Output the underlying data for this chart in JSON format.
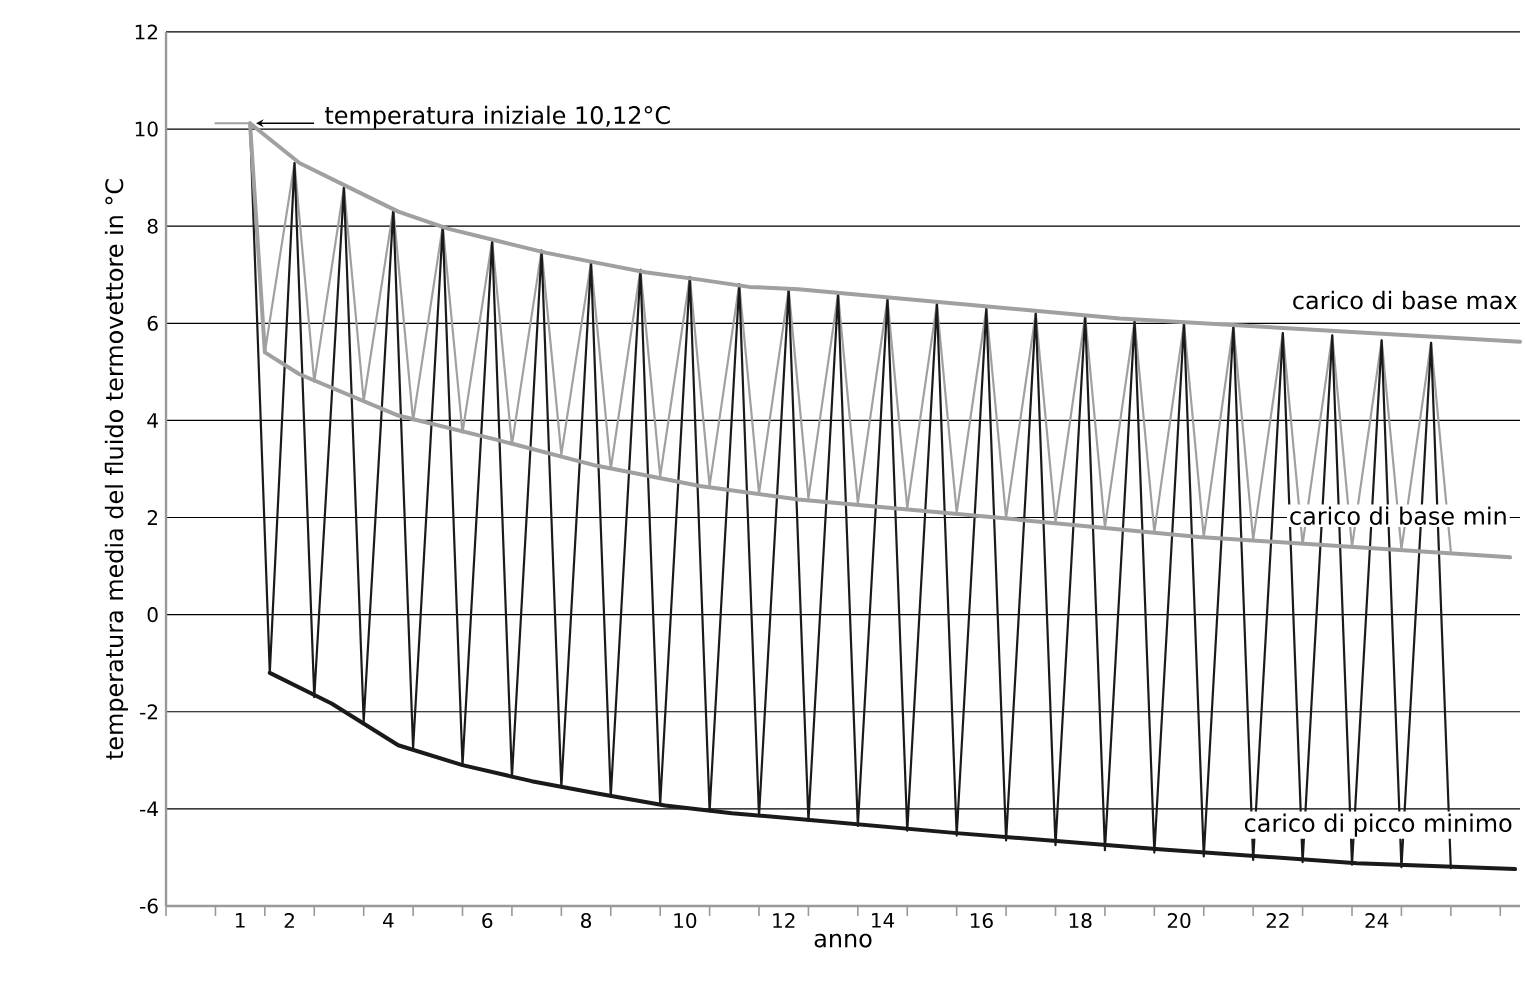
{
  "chart_data": {
    "type": "line",
    "xlabel": "anno",
    "ylabel": "temperatura media del fluido termovettore in °C",
    "xlim": [
      -0.5,
      26.9
    ],
    "ylim": [
      -6,
      12
    ],
    "yticks": [
      -6,
      -4,
      -2,
      0,
      2,
      4,
      6,
      8,
      10,
      12
    ],
    "xticks": [
      {
        "value": 1,
        "label": "1"
      },
      {
        "value": 2,
        "label": "2"
      },
      {
        "value": 4,
        "label": "4"
      },
      {
        "value": 6,
        "label": "6"
      },
      {
        "value": 8,
        "label": "8"
      },
      {
        "value": 10,
        "label": "10"
      },
      {
        "value": 12,
        "label": "12"
      },
      {
        "value": 14,
        "label": "14"
      },
      {
        "value": 16,
        "label": "16"
      },
      {
        "value": 18,
        "label": "18"
      },
      {
        "value": 20,
        "label": "20"
      },
      {
        "value": 22,
        "label": "22"
      },
      {
        "value": 24,
        "label": "24"
      },
      {
        "value": -0.5,
        "label": null
      },
      {
        "value": 0.5,
        "label": null
      },
      {
        "value": 1.5,
        "label": null
      },
      {
        "value": 2.5,
        "label": null
      },
      {
        "value": 3.5,
        "label": null
      },
      {
        "value": 4.5,
        "label": null
      },
      {
        "value": 5.5,
        "label": null
      },
      {
        "value": 6.5,
        "label": null
      },
      {
        "value": 7.5,
        "label": null
      },
      {
        "value": 8.5,
        "label": null
      },
      {
        "value": 9.5,
        "label": null
      },
      {
        "value": 10.5,
        "label": null
      },
      {
        "value": 11.5,
        "label": null
      },
      {
        "value": 12.5,
        "label": null
      },
      {
        "value": 13.5,
        "label": null
      },
      {
        "value": 14.5,
        "label": null
      },
      {
        "value": 15.5,
        "label": null
      },
      {
        "value": 16.5,
        "label": null
      },
      {
        "value": 17.5,
        "label": null
      },
      {
        "value": 18.5,
        "label": null
      },
      {
        "value": 19.5,
        "label": null
      },
      {
        "value": 20.5,
        "label": null
      },
      {
        "value": 21.5,
        "label": null
      },
      {
        "value": 22.5,
        "label": null
      },
      {
        "value": 23.5,
        "label": null
      },
      {
        "value": 24.5,
        "label": null
      },
      {
        "value": 25.5,
        "label": null
      },
      {
        "value": 26.5,
        "label": null
      }
    ],
    "grid": "y",
    "marker": "none",
    "line_style": "solid",
    "annotations": [
      {
        "text": "temperatura iniziale 10,12°C",
        "x": 1.2,
        "y": 10.12
      }
    ],
    "series": [
      {
        "color": "#a0a0a0",
        "x": [
          0.5,
          1.2,
          1.5,
          2.1,
          2.5,
          3.1,
          3.5,
          4.1,
          4.5,
          5.1,
          5.5,
          6.1,
          6.5,
          7.1,
          7.5,
          8.1,
          8.5,
          9.1,
          9.5,
          10.1,
          10.5,
          11.1,
          11.5,
          12.1,
          12.5,
          13.1,
          13.5,
          14.1,
          14.5,
          15.1,
          15.5,
          16.1,
          16.5,
          17.1,
          17.5,
          18.1,
          18.5,
          19.1,
          19.5,
          20.1,
          20.5,
          21.1,
          21.5,
          22.1,
          22.5,
          23.1,
          23.5,
          24.1,
          24.5,
          25.1,
          25.5
        ],
        "values": [
          10.12,
          10.12,
          5.4,
          9.3,
          4.8,
          8.8,
          4.4,
          8.35,
          4.0,
          8.0,
          3.75,
          7.7,
          3.5,
          7.5,
          3.3,
          7.25,
          3.0,
          7.1,
          2.85,
          6.95,
          2.65,
          6.8,
          2.5,
          6.7,
          2.4,
          6.6,
          2.3,
          6.5,
          2.2,
          6.4,
          2.1,
          6.3,
          2.0,
          6.2,
          1.9,
          6.15,
          1.8,
          6.05,
          1.7,
          6.0,
          1.6,
          5.95,
          1.55,
          5.8,
          1.45,
          5.75,
          1.4,
          5.65,
          1.35,
          5.6,
          1.3
        ]
      },
      {
        "color": "#1a1a1a",
        "x": [
          1.2,
          1.6,
          2.1,
          2.5,
          3.1,
          3.5,
          4.1,
          4.5,
          5.1,
          5.5,
          6.1,
          6.5,
          7.1,
          7.5,
          8.1,
          8.5,
          9.1,
          9.5,
          10.1,
          10.5,
          11.1,
          11.5,
          12.1,
          12.5,
          13.1,
          13.5,
          14.1,
          14.5,
          15.1,
          15.5,
          16.1,
          16.5,
          17.1,
          17.5,
          18.1,
          18.5,
          19.1,
          19.5,
          20.1,
          20.5,
          21.1,
          21.5,
          22.1,
          22.5,
          23.1,
          23.5,
          24.1,
          24.5,
          25.1,
          25.5
        ],
        "values": [
          10.12,
          -1.2,
          9.3,
          -1.7,
          8.8,
          -2.2,
          8.35,
          -2.75,
          8.0,
          -3.1,
          7.7,
          -3.35,
          7.5,
          -3.55,
          7.25,
          -3.75,
          7.1,
          -3.9,
          6.95,
          -4.05,
          6.8,
          -4.15,
          6.7,
          -4.25,
          6.6,
          -4.35,
          6.5,
          -4.45,
          6.4,
          -4.55,
          6.3,
          -4.65,
          6.2,
          -4.75,
          6.15,
          -4.85,
          6.05,
          -4.9,
          6.0,
          -4.98,
          5.95,
          -5.05,
          5.8,
          -5.1,
          5.75,
          -5.15,
          5.65,
          -5.2,
          5.6,
          -5.22
        ]
      },
      {
        "name": "carico di base max",
        "color": "#a0a0a0",
        "x": [
          1.2,
          2.2,
          3.2,
          4.2,
          5.2,
          6.2,
          7.2,
          8.2,
          9.2,
          10.3,
          11.3,
          12.3,
          18.8,
          26.9
        ],
        "values": [
          10.12,
          9.3,
          8.8,
          8.3,
          7.95,
          7.7,
          7.45,
          7.25,
          7.05,
          6.9,
          6.75,
          6.7,
          6.1,
          5.62
        ]
      },
      {
        "name": "carico di base min",
        "color": "#a0a0a0",
        "x": [
          1.2,
          1.5,
          2.2,
          4.2,
          6.2,
          8.2,
          10.3,
          12.3,
          16.3,
          20.4,
          26.7
        ],
        "values": [
          10.12,
          5.4,
          4.95,
          4.1,
          3.6,
          3.07,
          2.65,
          2.37,
          2.0,
          1.6,
          1.18
        ]
      },
      {
        "name": "carico di picco minimo",
        "color": "#1a1a1a",
        "x": [
          1.6,
          2.85,
          4.2,
          5.5,
          6.9,
          8.2,
          9.6,
          10.95,
          12.3,
          15.5,
          19.6,
          23.6,
          26.8
        ],
        "values": [
          -1.2,
          -1.83,
          -2.69,
          -3.1,
          -3.43,
          -3.68,
          -3.93,
          -4.09,
          -4.21,
          -4.5,
          -4.83,
          -5.12,
          -5.24
        ]
      }
    ]
  }
}
